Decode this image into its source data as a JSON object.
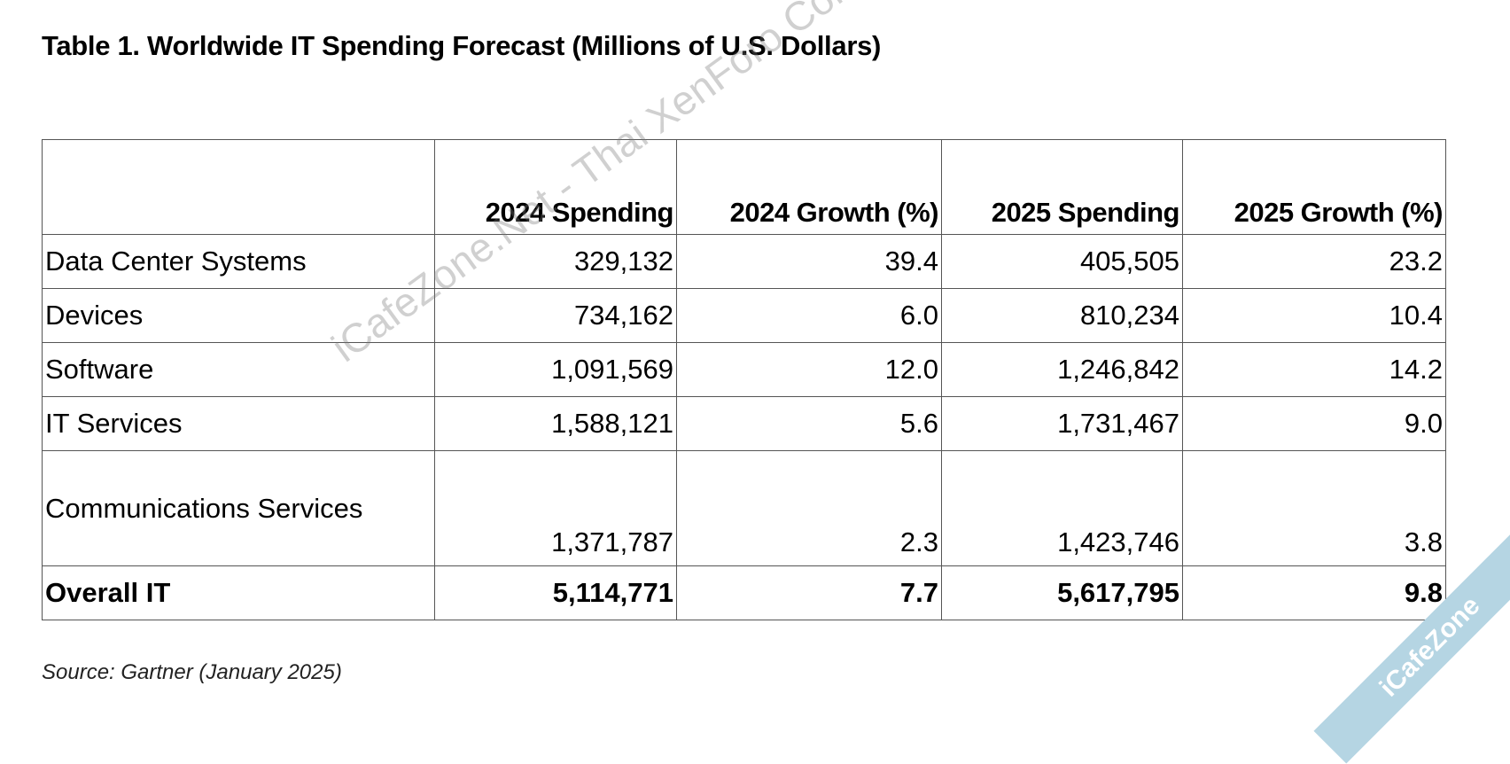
{
  "title": "Table 1. Worldwide IT Spending Forecast (Millions of U.S. Dollars)",
  "headers": [
    "",
    "2024 Spending",
    "2024 Growth (%)",
    "2025 Spending",
    "2025 Growth (%)"
  ],
  "rows": [
    {
      "label": "Data Center Systems",
      "s2024": "329,132",
      "g2024": "39.4",
      "s2025": "405,505",
      "g2025": "23.2"
    },
    {
      "label": "Devices",
      "s2024": "734,162",
      "g2024": "6.0",
      "s2025": "810,234",
      "g2025": "10.4"
    },
    {
      "label": "Software",
      "s2024": "1,091,569",
      "g2024": "12.0",
      "s2025": "1,246,842",
      "g2025": "14.2"
    },
    {
      "label": "IT Services",
      "s2024": "1,588,121",
      "g2024": "5.6",
      "s2025": "1,731,467",
      "g2025": "9.0"
    },
    {
      "label": "Communications Services",
      "s2024": "1,371,787",
      "g2024": "2.3",
      "s2025": "1,423,746",
      "g2025": "3.8"
    },
    {
      "label": "Overall IT",
      "s2024": "5,114,771",
      "g2024": "7.7",
      "s2025": "5,617,795",
      "g2025": "9.8"
    }
  ],
  "source": "Source: Gartner (January 2025)",
  "watermark": "iCafeZone.Net - Thai XenForo Community",
  "corner_badge": "iCafeZone"
}
